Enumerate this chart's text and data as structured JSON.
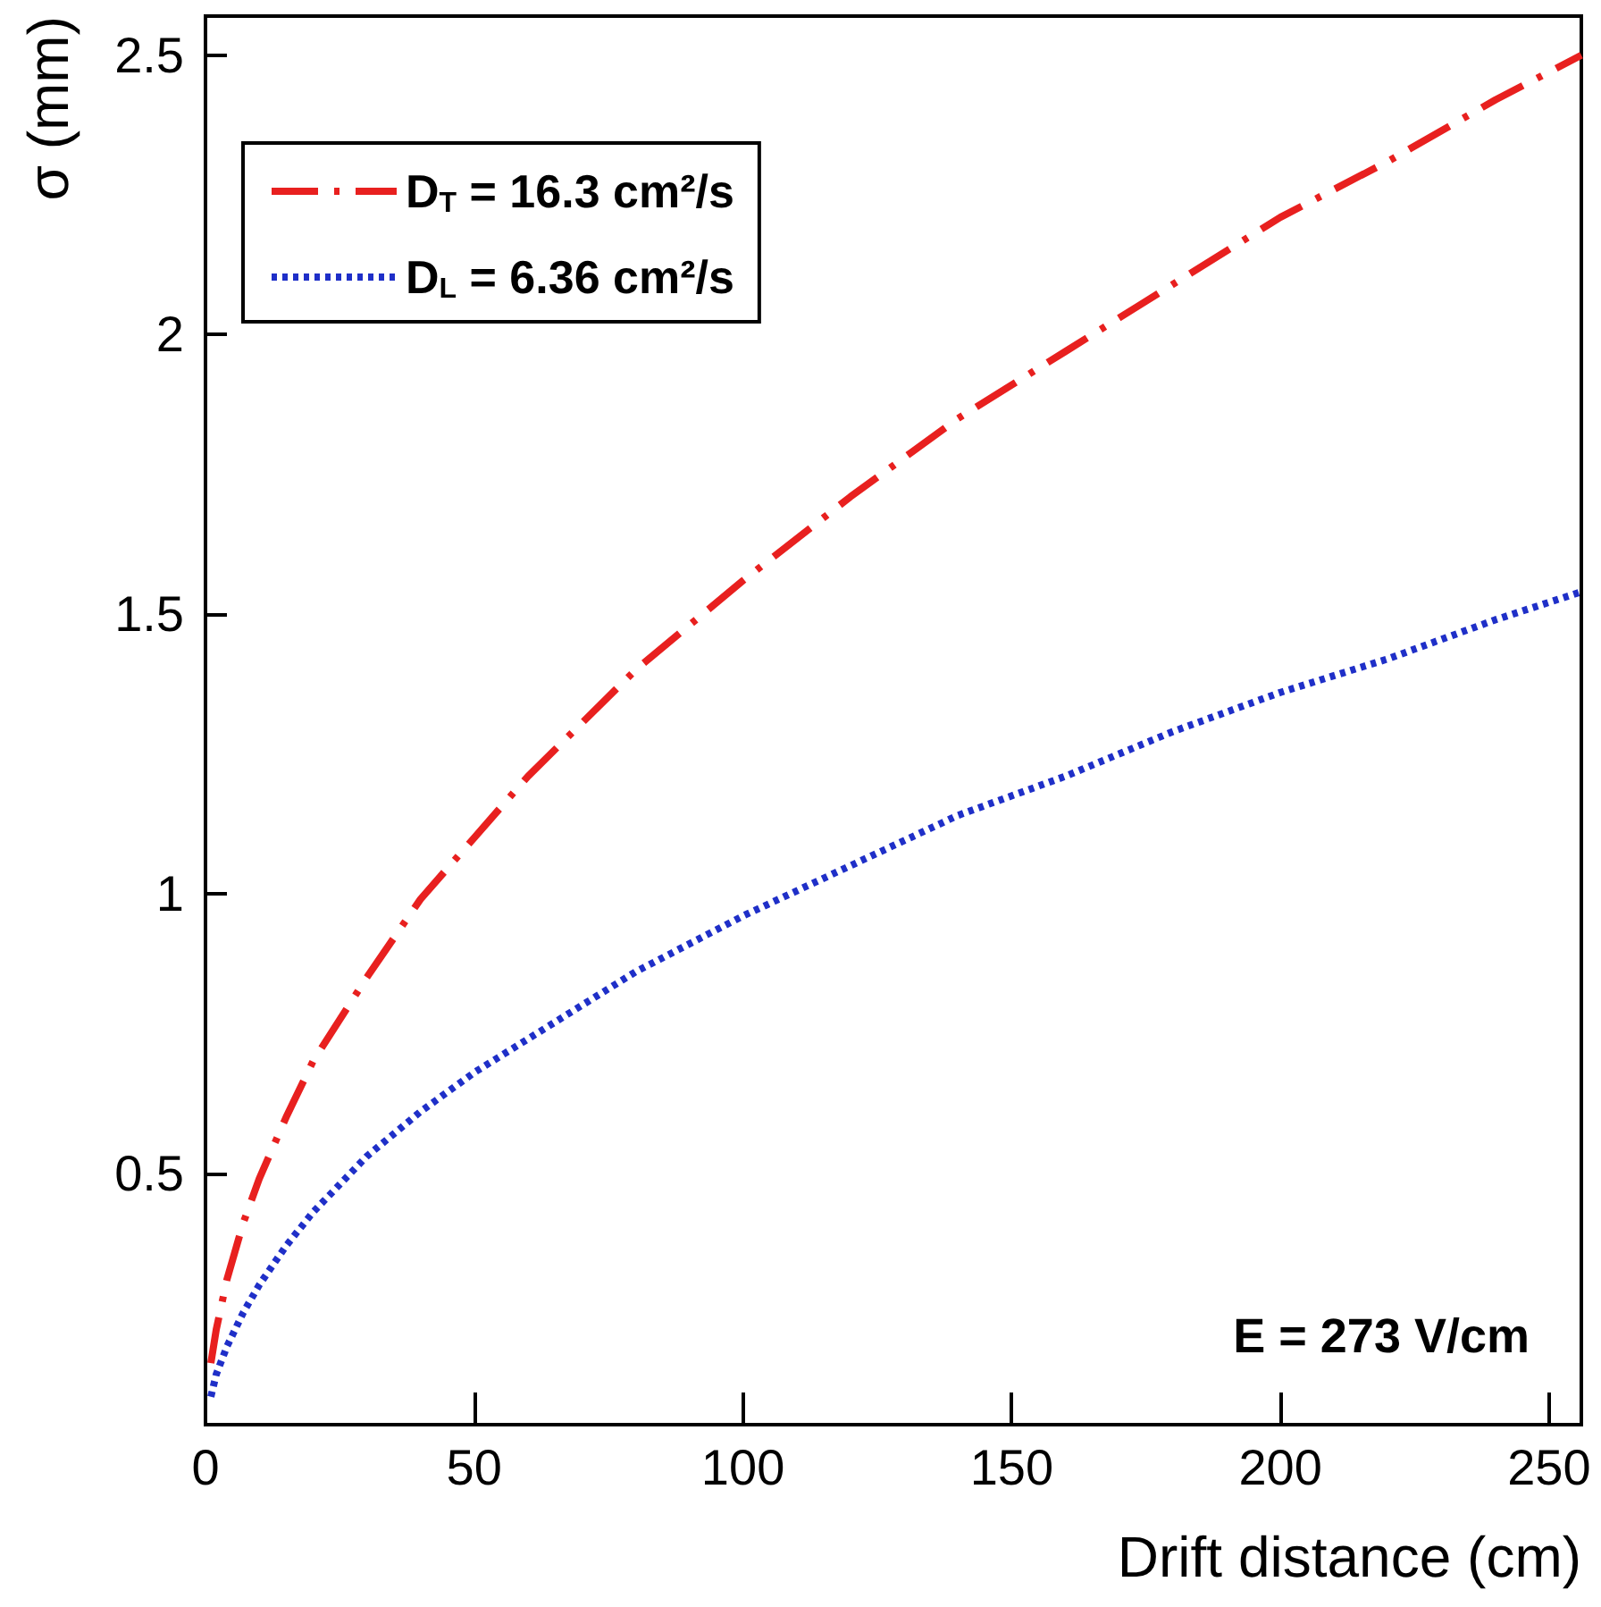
{
  "chart_data": {
    "type": "line",
    "xlabel": "Drift distance (cm)",
    "ylabel": "σ (mm)",
    "annotations": [
      "E = 273 V/cm"
    ],
    "xlim": [
      0,
      256
    ],
    "xticks": [
      0,
      50,
      100,
      150,
      200,
      250
    ],
    "ylim": [
      0.05,
      2.57
    ],
    "yticks": [
      0.5,
      1,
      1.5,
      2,
      2.5
    ],
    "grid": false,
    "legend": "top left",
    "marker": "none",
    "series": [
      {
        "name": "D$_{T}$ = 16.3 cm²/s",
        "color": "#e8201f",
        "line_style": "dashed",
        "x": [
          1,
          2,
          4,
          7,
          10,
          15,
          20,
          30,
          40,
          50,
          60,
          80,
          100,
          120,
          140,
          160,
          180,
          200,
          220,
          240,
          256
        ],
        "values": [
          0.16,
          0.22,
          0.31,
          0.41,
          0.49,
          0.6,
          0.7,
          0.85,
          0.99,
          1.1,
          1.21,
          1.4,
          1.56,
          1.71,
          1.85,
          1.97,
          2.09,
          2.21,
          2.31,
          2.42,
          2.5
        ]
      },
      {
        "name": "D$_{L}$ = 6.36 cm²/s",
        "color": "#1f2fc8",
        "line_style": "dotted",
        "x": [
          1,
          2,
          4,
          7,
          10,
          15,
          20,
          30,
          40,
          50,
          60,
          80,
          100,
          120,
          140,
          160,
          180,
          200,
          220,
          240,
          256
        ],
        "values": [
          0.1,
          0.14,
          0.19,
          0.25,
          0.3,
          0.37,
          0.43,
          0.53,
          0.61,
          0.68,
          0.74,
          0.86,
          0.96,
          1.05,
          1.14,
          1.21,
          1.29,
          1.36,
          1.42,
          1.49,
          1.54
        ]
      }
    ]
  }
}
